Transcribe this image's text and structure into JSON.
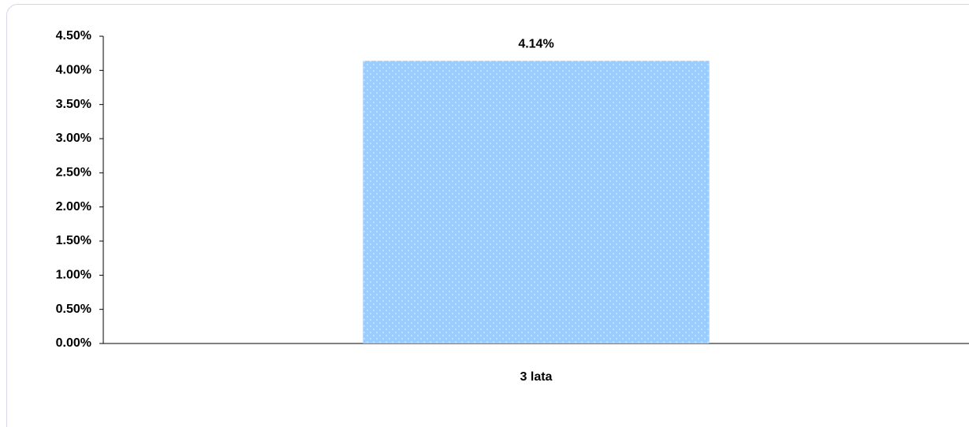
{
  "chart_data": {
    "type": "bar",
    "categories": [
      "3 lata"
    ],
    "values": [
      4.14
    ],
    "value_labels": [
      "4.14%"
    ],
    "color": "#99ccff",
    "ylim": [
      0,
      4.5
    ],
    "yticks": [
      {
        "value": 0,
        "label": "0.00%"
      },
      {
        "value": 0.5,
        "label": "0.50%"
      },
      {
        "value": 1,
        "label": "1.00%"
      },
      {
        "value": 1.5,
        "label": "1.50%"
      },
      {
        "value": 2,
        "label": "2.00%"
      },
      {
        "value": 2.5,
        "label": "2.50%"
      },
      {
        "value": 3,
        "label": "3.00%"
      },
      {
        "value": 3.5,
        "label": "3.50%"
      },
      {
        "value": 4,
        "label": "4.00%"
      },
      {
        "value": 4.5,
        "label": "4.50%"
      }
    ],
    "grid": false
  }
}
